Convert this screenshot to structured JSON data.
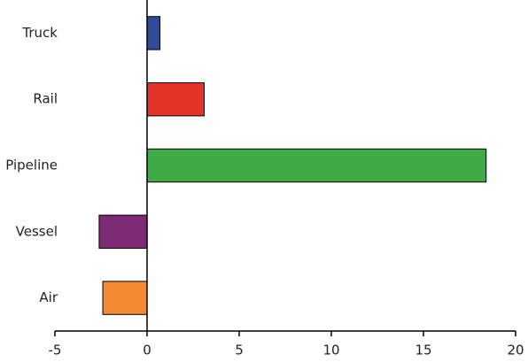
{
  "chart_data": {
    "type": "bar",
    "orientation": "horizontal",
    "categories": [
      "Truck",
      "Rail",
      "Pipeline",
      "Vessel",
      "Air"
    ],
    "values": [
      0.7,
      3.1,
      18.4,
      -2.6,
      -2.4
    ],
    "colors": [
      "#2e4a9b",
      "#e5332a",
      "#3fab47",
      "#7b2a73",
      "#f18a32"
    ],
    "xlim": [
      -5,
      20
    ],
    "xticks": [
      -5,
      0,
      5,
      10,
      15,
      20
    ]
  }
}
